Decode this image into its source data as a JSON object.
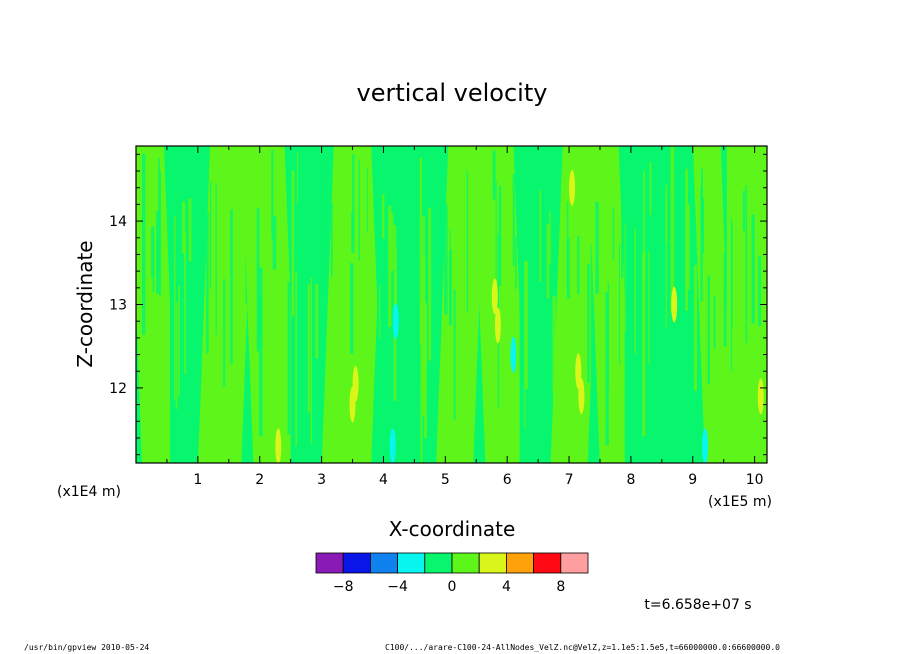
{
  "chart_data": {
    "type": "heatmap",
    "title": "vertical velocity",
    "xlabel": "X-coordinate",
    "ylabel": "Z-coordinate",
    "x_unit_label": "(x1E5 m)",
    "y_unit_label": "(x1E4 m)",
    "xlim": [
      0,
      10.2
    ],
    "ylim": [
      11.1,
      14.9
    ],
    "x_ticks": [
      "1",
      "2",
      "3",
      "4",
      "5",
      "6",
      "7",
      "8",
      "9",
      "10"
    ],
    "y_ticks": [
      "12",
      "13",
      "14"
    ],
    "colorbar": {
      "bins": [
        -10,
        -8,
        -6,
        -4,
        -2,
        0,
        2,
        4,
        6,
        8,
        10
      ],
      "colors": [
        "#8a1ab5",
        "#0a16e8",
        "#0f82f0",
        "#08f5f0",
        "#08f56e",
        "#5ef51a",
        "#d9f51a",
        "#ffa10a",
        "#ff0a14",
        "#ff9e9e"
      ],
      "labels": [
        "-8",
        "-4",
        "0",
        "4",
        "8"
      ]
    },
    "fields": [
      {
        "x0": 0.0,
        "x1": 0.55,
        "value": 1.2
      },
      {
        "x0": 0.55,
        "x1": 1.1,
        "value": -0.6
      },
      {
        "x0": 1.1,
        "x1": 1.8,
        "value": 0.9
      },
      {
        "x0": 1.8,
        "x1": 2.5,
        "value": 1.4
      },
      {
        "x0": 2.5,
        "x1": 3.1,
        "value": -0.8
      },
      {
        "x0": 3.1,
        "x1": 3.9,
        "value": 1.1
      },
      {
        "x0": 3.9,
        "x1": 4.3,
        "value": -0.9
      },
      {
        "x0": 4.3,
        "x1": 4.95,
        "value": -1.1
      },
      {
        "x0": 4.95,
        "x1": 5.55,
        "value": 1.3
      },
      {
        "x0": 5.55,
        "x1": 6.2,
        "value": 0.8
      },
      {
        "x0": 6.2,
        "x1": 6.8,
        "value": -0.7
      },
      {
        "x0": 6.8,
        "x1": 7.4,
        "value": 1.2
      },
      {
        "x0": 7.4,
        "x1": 7.9,
        "value": 0.7
      },
      {
        "x0": 7.9,
        "x1": 8.55,
        "value": -1.0
      },
      {
        "x0": 8.55,
        "x1": 9.1,
        "value": -0.8
      },
      {
        "x0": 9.1,
        "x1": 9.55,
        "value": 1.0
      },
      {
        "x0": 9.55,
        "x1": 10.2,
        "value": 0.6
      }
    ],
    "features": [
      {
        "x": 3.55,
        "z": 12.05,
        "value": 2.8
      },
      {
        "x": 3.5,
        "z": 11.8,
        "value": 2.5
      },
      {
        "x": 5.85,
        "z": 12.75,
        "value": 2.6
      },
      {
        "x": 5.8,
        "z": 13.1,
        "value": 2.2
      },
      {
        "x": 7.05,
        "z": 14.4,
        "value": 2.7
      },
      {
        "x": 7.15,
        "z": 12.2,
        "value": 2.9
      },
      {
        "x": 7.2,
        "z": 11.9,
        "value": 2.5
      },
      {
        "x": 2.3,
        "z": 11.3,
        "value": 2.2
      },
      {
        "x": 4.15,
        "z": 11.3,
        "value": -2.4
      },
      {
        "x": 4.2,
        "z": 12.8,
        "value": -2.2
      },
      {
        "x": 6.1,
        "z": 12.4,
        "value": -2.3
      },
      {
        "x": 9.2,
        "z": 11.3,
        "value": -2.1
      },
      {
        "x": 8.7,
        "z": 13.0,
        "value": 2.1
      },
      {
        "x": 10.1,
        "z": 11.9,
        "value": 2.2
      }
    ],
    "time_label": "t=6.658e+07 s"
  },
  "footer": {
    "left": "/usr/bin/gpview   2010-05-24",
    "right": "C100/.../arare-C100-24-AllNodes_VelZ.nc@VelZ,z=1.1e5:1.5e5,t=66000000.0:66600000.0"
  }
}
